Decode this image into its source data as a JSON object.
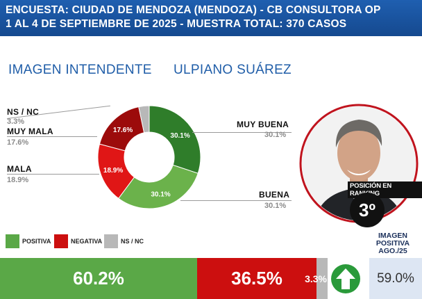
{
  "header": {
    "line1": "ENCUESTA: CIUDAD DE MENDOZA (MENDOZA) - CB CONSULTORA OP",
    "line2": "1 AL 4 DE SEPTIEMBRE DE 2025 - MUESTRA TOTAL: 370 CASOS"
  },
  "title_left": "IMAGEN INTENDENTE",
  "title_right": "ULPIANO SUÁREZ",
  "labels": {
    "muy_buena": {
      "name": "MUY BUENA",
      "value": "30.1%"
    },
    "buena": {
      "name": "BUENA",
      "value": "30.1%"
    },
    "mala": {
      "name": "MALA",
      "value": "18.9%"
    },
    "muy_mala": {
      "name": "MUY MALA",
      "value": "17.6%"
    },
    "ns_nc": {
      "name": "NS / NC",
      "value": "3.3%"
    }
  },
  "legend": {
    "positiva": "POSITIVA",
    "negativa": "NEGATIVA",
    "ns_nc": "NS / NC"
  },
  "summary": {
    "positiva": "60.2%",
    "negativa": "36.5%",
    "ns_nc": "3.3%",
    "previous_label": "IMAGEN POSITIVA AGO./25",
    "previous_value": "59.0%"
  },
  "ranking": {
    "label": "POSICIÓN EN RANKING",
    "value": "3º"
  },
  "colors": {
    "muy_buena": "#2f7d2a",
    "buena": "#6bb24b",
    "mala": "#e01616",
    "muy_mala": "#9c0b0b",
    "ns_nc": "#b8b8b8",
    "positiva": "#5aa847",
    "negativa": "#cc0f0f",
    "header": "#1a56a3",
    "circle_border": "#c0141e"
  },
  "icons": {
    "trend": "up-arrow-icon",
    "photo": "person-photo"
  },
  "chart_data": [
    {
      "type": "pie",
      "categories": [
        "MUY BUENA",
        "BUENA",
        "MALA",
        "MUY MALA",
        "NS / NC"
      ],
      "values": [
        30.1,
        30.1,
        18.9,
        17.6,
        3.3
      ]
    },
    {
      "type": "bar",
      "categories": [
        "POSITIVA",
        "NEGATIVA",
        "NS / NC"
      ],
      "values": [
        60.2,
        36.5,
        3.3
      ]
    }
  ]
}
